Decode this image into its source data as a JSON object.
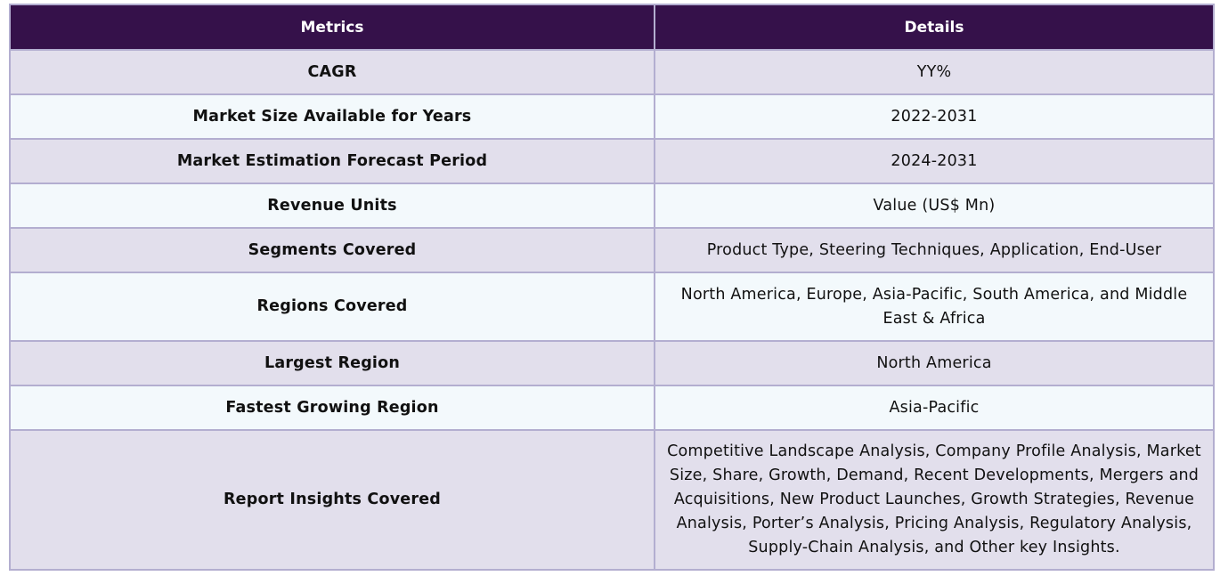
{
  "table": {
    "headers": [
      "Metrics",
      "Details"
    ],
    "rows": [
      {
        "metric": "CAGR",
        "details": "YY%"
      },
      {
        "metric": "Market Size Available for Years",
        "details": "2022-2031"
      },
      {
        "metric": "Market Estimation Forecast Period",
        "details": "2024-2031"
      },
      {
        "metric": "Revenue Units",
        "details": "Value (US$ Mn)"
      },
      {
        "metric": "Segments Covered",
        "details": "Product Type, Steering Techniques, Application, End-User"
      },
      {
        "metric": "Regions Covered",
        "details": "North America, Europe, Asia-Pacific, South America, and Middle East & Africa"
      },
      {
        "metric": "Largest Region",
        "details": "North America"
      },
      {
        "metric": "Fastest Growing Region",
        "details": "Asia-Pacific"
      },
      {
        "metric": "Report Insights Covered",
        "details": "Competitive Landscape Analysis, Company Profile Analysis, Market Size, Share, Growth, Demand, Recent Developments, Mergers and Acquisitions, New Product Launches, Growth Strategies, Revenue Analysis, Porter’s Analysis, Pricing Analysis, Regulatory Analysis, Supply-Chain Analysis, and Other key Insights."
      }
    ]
  },
  "colors": {
    "header_bg": "#35114a",
    "row_odd_bg": "#e2dfec",
    "row_even_bg": "#f3f9fc",
    "border": "#b3aed0"
  }
}
